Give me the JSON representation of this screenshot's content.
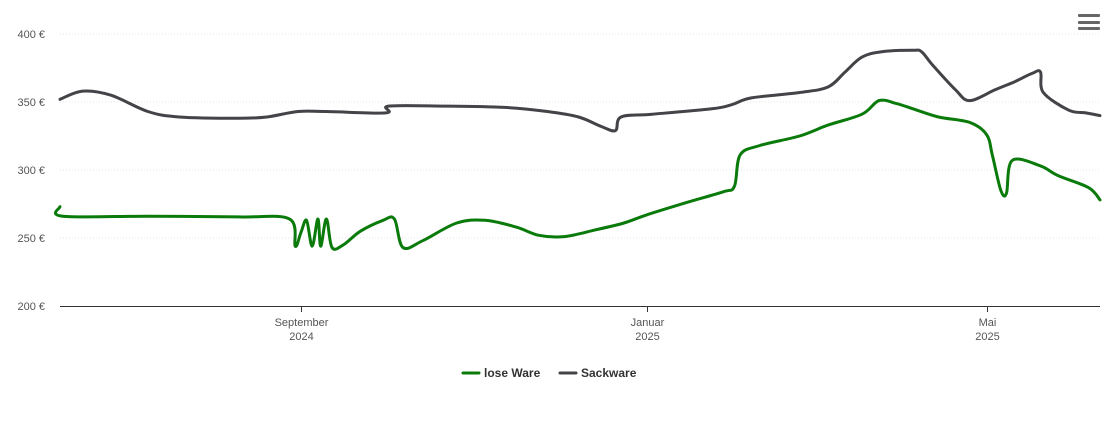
{
  "menu": {
    "icon": "hamburger-menu-icon"
  },
  "chart_data": {
    "type": "line",
    "x_unit": "date",
    "y_ticks": [
      {
        "value": 200,
        "label": "200 €"
      },
      {
        "value": 250,
        "label": "250 €"
      },
      {
        "value": 300,
        "label": "300 €"
      },
      {
        "value": 350,
        "label": "350 €"
      },
      {
        "value": 400,
        "label": "400 €"
      }
    ],
    "ylim": [
      200,
      400
    ],
    "xlim": [
      "2024-06-08",
      "2025-06-10"
    ],
    "x_ticks": [
      {
        "date": "2024-09-01",
        "line1": "September",
        "line2": "2024"
      },
      {
        "date": "2025-01-01",
        "line1": "Januar",
        "line2": "2025"
      },
      {
        "date": "2025-05-01",
        "line1": "Mai",
        "line2": "2025"
      }
    ],
    "grid": true,
    "legend": "bottom-center",
    "series": [
      {
        "name": "lose Ware",
        "color": "#0a7a0a",
        "points": [
          [
            "2024-06-08",
            273
          ],
          [
            "2024-06-09",
            266
          ],
          [
            "2024-07-10",
            266
          ],
          [
            "2024-08-10",
            265.5
          ],
          [
            "2024-08-28",
            264
          ],
          [
            "2024-08-30",
            244
          ],
          [
            "2024-09-01",
            254
          ],
          [
            "2024-09-03",
            263
          ],
          [
            "2024-09-05",
            244
          ],
          [
            "2024-09-07",
            264
          ],
          [
            "2024-09-08",
            244
          ],
          [
            "2024-09-10",
            264
          ],
          [
            "2024-09-12",
            243
          ],
          [
            "2024-09-16",
            245
          ],
          [
            "2024-09-22",
            255
          ],
          [
            "2024-09-30",
            263
          ],
          [
            "2024-10-04",
            264
          ],
          [
            "2024-10-07",
            243
          ],
          [
            "2024-10-14",
            248
          ],
          [
            "2024-10-26",
            261
          ],
          [
            "2024-11-05",
            263
          ],
          [
            "2024-11-16",
            258
          ],
          [
            "2024-11-24",
            252
          ],
          [
            "2024-12-03",
            251
          ],
          [
            "2024-12-14",
            256
          ],
          [
            "2024-12-24",
            261
          ],
          [
            "2025-01-01",
            267
          ],
          [
            "2025-01-15",
            276
          ],
          [
            "2025-01-28",
            284
          ],
          [
            "2025-02-01",
            288
          ],
          [
            "2025-02-03",
            311
          ],
          [
            "2025-02-10",
            318
          ],
          [
            "2025-02-24",
            325
          ],
          [
            "2025-03-06",
            333
          ],
          [
            "2025-03-18",
            341
          ],
          [
            "2025-03-24",
            351
          ],
          [
            "2025-03-30",
            349
          ],
          [
            "2025-04-05",
            345
          ],
          [
            "2025-04-14",
            339
          ],
          [
            "2025-04-25",
            335
          ],
          [
            "2025-05-01",
            326
          ],
          [
            "2025-05-03",
            311
          ],
          [
            "2025-05-06",
            285
          ],
          [
            "2025-05-08",
            283
          ],
          [
            "2025-05-10",
            307
          ],
          [
            "2025-05-20",
            303
          ],
          [
            "2025-05-26",
            296
          ],
          [
            "2025-06-06",
            287
          ],
          [
            "2025-06-10",
            278
          ]
        ]
      },
      {
        "name": "Sackware",
        "color": "#434348",
        "points": [
          [
            "2024-06-08",
            352
          ],
          [
            "2024-06-16",
            358
          ],
          [
            "2024-06-26",
            355
          ],
          [
            "2024-07-09",
            343
          ],
          [
            "2024-07-20",
            339
          ],
          [
            "2024-08-10",
            338
          ],
          [
            "2024-08-20",
            339
          ],
          [
            "2024-08-31",
            343
          ],
          [
            "2024-09-10",
            343
          ],
          [
            "2024-10-01",
            342
          ],
          [
            "2024-10-02",
            347
          ],
          [
            "2024-10-22",
            347
          ],
          [
            "2024-11-12",
            346
          ],
          [
            "2024-11-27",
            343
          ],
          [
            "2024-12-08",
            339
          ],
          [
            "2024-12-16",
            332
          ],
          [
            "2024-12-21",
            329
          ],
          [
            "2024-12-23",
            339
          ],
          [
            "2025-01-03",
            341
          ],
          [
            "2025-01-24",
            345
          ],
          [
            "2025-01-31",
            348
          ],
          [
            "2025-02-07",
            353
          ],
          [
            "2025-02-24",
            357
          ],
          [
            "2025-03-06",
            361
          ],
          [
            "2025-03-12",
            372
          ],
          [
            "2025-03-18",
            383
          ],
          [
            "2025-03-25",
            387
          ],
          [
            "2025-04-05",
            388
          ],
          [
            "2025-04-08",
            387
          ],
          [
            "2025-04-12",
            377
          ],
          [
            "2025-04-20",
            359
          ],
          [
            "2025-04-25",
            351
          ],
          [
            "2025-05-04",
            359
          ],
          [
            "2025-05-11",
            365
          ],
          [
            "2025-05-17",
            371
          ],
          [
            "2025-05-20",
            372
          ],
          [
            "2025-05-21",
            357
          ],
          [
            "2025-05-30",
            344
          ],
          [
            "2025-06-05",
            342
          ],
          [
            "2025-06-10",
            340
          ]
        ]
      }
    ]
  }
}
